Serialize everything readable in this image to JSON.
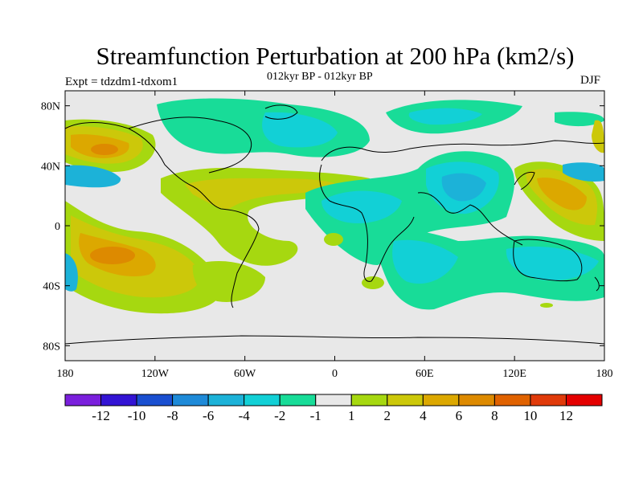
{
  "title": "Streamfunction Perturbation at 200 hPa (km2/s)",
  "left_subtitle": "Expt = tdzdm1-tdxom1",
  "center_subtitle": "012kyr BP - 012kyr BP",
  "right_subtitle": "DJF",
  "lon_ticks": [
    "180",
    "120W",
    "60W",
    "0",
    "60E",
    "120E",
    "180"
  ],
  "lat_ticks": [
    "80N",
    "40N",
    "0",
    "40S",
    "80S"
  ],
  "colorbar": {
    "colors": [
      "#7a1fdc",
      "#3314d4",
      "#1a4fd0",
      "#1e8ad8",
      "#1cb2d8",
      "#12d0d6",
      "#18dc98",
      "#e8e8e8",
      "#a6d810",
      "#ccc80a",
      "#dca800",
      "#dd8a00",
      "#e06200",
      "#e03a0a",
      "#e40000"
    ],
    "labels": [
      "-12",
      "-10",
      "-8",
      "-6",
      "-4",
      "-2",
      "-1",
      "1",
      "2",
      "4",
      "6",
      "8",
      "10",
      "12"
    ]
  },
  "chart_data": {
    "type": "heatmap",
    "title": "Streamfunction Perturbation at 200 hPa (km2/s)",
    "subtitle": "012kyr BP - 012kyr BP",
    "experiment": "Expt = tdzdm1-tdxom1",
    "season": "DJF",
    "xlim": [
      -180,
      180
    ],
    "ylim": [
      -90,
      90
    ],
    "levels": [
      -12,
      -10,
      -8,
      -6,
      -4,
      -2,
      -1,
      1,
      2,
      4,
      6,
      8,
      10,
      12
    ],
    "features": [
      {
        "lon": -160,
        "lat": 50,
        "value": 7
      },
      {
        "lon": -155,
        "lat": -18,
        "value": 7
      },
      {
        "lon": 150,
        "lat": 25,
        "value": 6
      },
      {
        "lon": 85,
        "lat": 25,
        "value": -5
      },
      {
        "lon": 20,
        "lat": 15,
        "value": -4
      },
      {
        "lon": -30,
        "lat": 65,
        "value": -3
      },
      {
        "lon": 130,
        "lat": -25,
        "value": -3
      },
      {
        "lon": 40,
        "lat": -30,
        "value": -3
      },
      {
        "lon": -170,
        "lat": 35,
        "value": -3
      }
    ]
  }
}
